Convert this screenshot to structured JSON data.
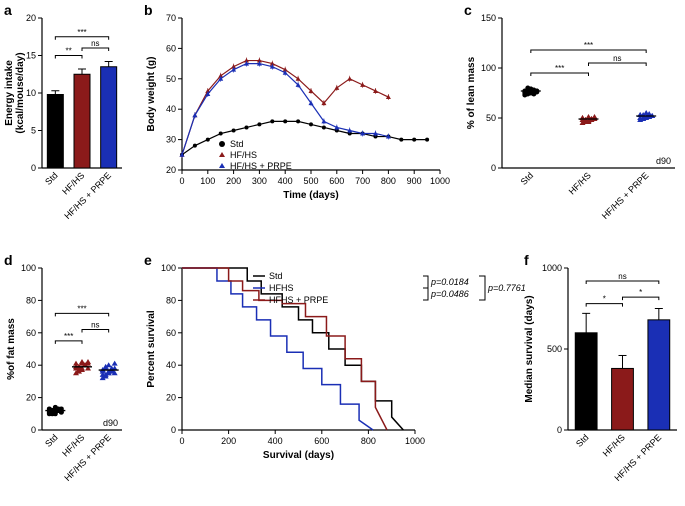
{
  "colors": {
    "std": "#000000",
    "hfhs": "#8b1a1a",
    "prpe": "#1a2fb5",
    "bg": "#ffffff"
  },
  "groups": [
    "Std",
    "HF/HS",
    "HF/HS + PRPE"
  ],
  "panel_a": {
    "label": "a",
    "ylabel": "Energy intake\n(kcal/mouse/day)",
    "ylim": [
      0,
      20
    ],
    "ytick_step": 5,
    "values": [
      9.8,
      12.5,
      13.5
    ],
    "errors": [
      0.5,
      0.7,
      0.7
    ],
    "bar_colors": [
      "#000000",
      "#8b1a1a",
      "#1a2fb5"
    ],
    "sig": [
      {
        "from": 0,
        "to": 1,
        "y": 15,
        "label": "**"
      },
      {
        "from": 1,
        "to": 2,
        "y": 16,
        "label": "ns"
      },
      {
        "from": 0,
        "to": 2,
        "y": 17.5,
        "label": "***"
      }
    ]
  },
  "panel_b": {
    "label": "b",
    "xlabel": "Time (days)",
    "ylabel": "Body weight (g)",
    "xlim": [
      0,
      1000
    ],
    "xtick_step": 100,
    "ylim": [
      20,
      70
    ],
    "ytick_step": 10,
    "legend_items": [
      "Std",
      "HF/HS",
      "HF/HS + PRPE"
    ],
    "series": {
      "std": {
        "color": "#000000",
        "marker": "circle",
        "x": [
          0,
          50,
          100,
          150,
          200,
          250,
          300,
          350,
          400,
          450,
          500,
          550,
          600,
          650,
          700,
          750,
          800,
          850,
          900,
          950
        ],
        "y": [
          25,
          28,
          30,
          32,
          33,
          34,
          35,
          36,
          36,
          36,
          35,
          34,
          33,
          32,
          32,
          31,
          31,
          30,
          30,
          30
        ]
      },
      "hfhs": {
        "color": "#8b1a1a",
        "marker": "triangle",
        "x": [
          0,
          50,
          100,
          150,
          200,
          250,
          300,
          350,
          400,
          450,
          500,
          550,
          600,
          650,
          700,
          750,
          800
        ],
        "y": [
          25,
          38,
          46,
          51,
          54,
          56,
          56,
          55,
          53,
          50,
          46,
          42,
          47,
          50,
          48,
          46,
          44
        ]
      },
      "prpe": {
        "color": "#1a2fb5",
        "marker": "triangle",
        "x": [
          0,
          50,
          100,
          150,
          200,
          250,
          300,
          350,
          400,
          450,
          500,
          550,
          600,
          650,
          700,
          750,
          800
        ],
        "y": [
          25,
          38,
          45,
          50,
          53,
          55,
          55,
          54,
          52,
          48,
          42,
          36,
          34,
          33,
          32,
          32,
          31
        ]
      }
    }
  },
  "panel_c": {
    "label": "c",
    "ylabel": "% of lean mass",
    "ylim": [
      0,
      150
    ],
    "ytick_step": 50,
    "corner": "d90",
    "values": [
      77,
      49,
      52
    ],
    "colors": [
      "#000000",
      "#8b1a1a",
      "#1a2fb5"
    ],
    "scatter": {
      "std": [
        73,
        74,
        75,
        76,
        77,
        77,
        78,
        79,
        78,
        76,
        75,
        80,
        79,
        74,
        77,
        76,
        78,
        75
      ],
      "hfhs": [
        45,
        46,
        47,
        48,
        49,
        50,
        48,
        47,
        49,
        51,
        50,
        48,
        46,
        49,
        50,
        48,
        47,
        51
      ],
      "prpe": [
        48,
        49,
        50,
        51,
        52,
        53,
        50,
        51,
        54,
        52,
        53,
        49,
        55,
        51,
        52,
        50,
        53,
        51
      ]
    },
    "sig": [
      {
        "from": 0,
        "to": 1,
        "y": 95,
        "label": "***"
      },
      {
        "from": 1,
        "to": 2,
        "y": 105,
        "label": "ns"
      },
      {
        "from": 0,
        "to": 2,
        "y": 118,
        "label": "***"
      }
    ]
  },
  "panel_d": {
    "label": "d",
    "ylabel": "%of fat mass",
    "ylim": [
      0,
      100
    ],
    "ytick_step": 20,
    "corner": "d90",
    "values": [
      12,
      39,
      37
    ],
    "colors": [
      "#000000",
      "#8b1a1a",
      "#1a2fb5"
    ],
    "scatter": {
      "std": [
        10,
        11,
        12,
        13,
        11,
        12,
        10,
        14,
        12,
        11,
        13,
        12,
        11,
        12,
        13,
        11,
        12,
        10
      ],
      "hfhs": [
        35,
        36,
        38,
        40,
        41,
        39,
        37,
        42,
        40,
        38,
        41,
        39,
        37,
        40,
        42,
        38,
        39,
        41
      ],
      "prpe": [
        32,
        34,
        36,
        38,
        35,
        37,
        33,
        40,
        36,
        38,
        34,
        39,
        35,
        37,
        41,
        36,
        38,
        35
      ]
    },
    "sig": [
      {
        "from": 0,
        "to": 1,
        "y": 55,
        "label": "***"
      },
      {
        "from": 1,
        "to": 2,
        "y": 62,
        "label": "ns"
      },
      {
        "from": 0,
        "to": 2,
        "y": 72,
        "label": "***"
      }
    ]
  },
  "panel_e": {
    "label": "e",
    "xlabel": "Survival (days)",
    "ylabel": "Percent survival",
    "xlim": [
      0,
      1000
    ],
    "xtick_step": 200,
    "ylim": [
      0,
      100
    ],
    "ytick_step": 20,
    "legend_items": [
      "Std",
      "HFHS",
      "HFHS + PRPE"
    ],
    "pvalues": [
      {
        "pair": "Std-HFHS",
        "text": "p=0.0184"
      },
      {
        "pair": "HFHS-PRPE",
        "text": "p=0.0486"
      },
      {
        "pair": "Std-PRPE",
        "text": "p=0.7761"
      }
    ],
    "series": {
      "std": {
        "color": "#000000",
        "x": [
          0,
          280,
          280,
          340,
          340,
          430,
          430,
          500,
          500,
          560,
          560,
          630,
          630,
          700,
          700,
          770,
          770,
          830,
          830,
          900,
          900,
          950
        ],
        "y": [
          100,
          100,
          92,
          92,
          84,
          84,
          76,
          76,
          68,
          68,
          60,
          60,
          50,
          50,
          40,
          40,
          30,
          30,
          18,
          18,
          8,
          0
        ]
      },
      "hfhs": {
        "color": "#1a2fb5",
        "x": [
          0,
          150,
          150,
          210,
          210,
          260,
          260,
          320,
          320,
          380,
          380,
          450,
          450,
          520,
          520,
          600,
          600,
          680,
          680,
          760,
          760,
          820
        ],
        "y": [
          100,
          100,
          92,
          92,
          84,
          84,
          76,
          76,
          68,
          68,
          58,
          58,
          48,
          48,
          38,
          38,
          28,
          28,
          16,
          16,
          6,
          0
        ]
      },
      "prpe": {
        "color": "#8b1a1a",
        "x": [
          0,
          200,
          200,
          260,
          260,
          330,
          330,
          430,
          430,
          530,
          530,
          620,
          620,
          700,
          700,
          770,
          770,
          830,
          830,
          880
        ],
        "y": [
          100,
          100,
          92,
          92,
          86,
          86,
          80,
          80,
          78,
          78,
          70,
          70,
          58,
          58,
          44,
          44,
          30,
          30,
          14,
          0
        ]
      }
    }
  },
  "panel_f": {
    "label": "f",
    "ylabel": "Median survival (days)",
    "ylim": [
      0,
      1000
    ],
    "ytick_step": 500,
    "values": [
      600,
      380,
      680
    ],
    "errors": [
      120,
      80,
      70
    ],
    "bar_colors": [
      "#000000",
      "#8b1a1a",
      "#1a2fb5"
    ],
    "sig": [
      {
        "from": 0,
        "to": 1,
        "y": 780,
        "label": "*"
      },
      {
        "from": 1,
        "to": 2,
        "y": 820,
        "label": "*"
      },
      {
        "from": 0,
        "to": 2,
        "y": 920,
        "label": "ns"
      }
    ]
  }
}
